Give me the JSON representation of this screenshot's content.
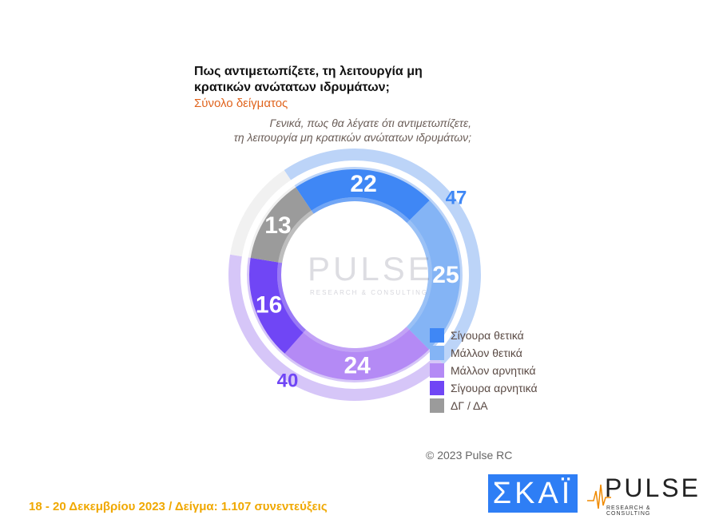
{
  "chart_data": {
    "type": "pie",
    "title": "Πως αντιμετωπίζετε, τη λειτουργία μη κρατικών ανώτατων ιδρυμάτων;",
    "subtitle": "Σύνολο δείγματος",
    "question": [
      "Γενικά, πως θα λέγατε ότι αντιμετωπίζετε,",
      "τη λειτουργία μη κρατικών ανώτατων ιδρυμάτων;"
    ],
    "categories": [
      "Σίγουρα θετικά",
      "Μάλλον θετικά",
      "Μάλλον αρνητικά",
      "Σίγουρα αρνητικά",
      "ΔΓ / ΔΑ"
    ],
    "values": [
      22,
      25,
      24,
      16,
      13
    ],
    "colors": [
      "#3f87f5",
      "#84b4f5",
      "#b48af5",
      "#7046f5",
      "#9b9b9b"
    ],
    "aggregates": [
      {
        "value": 47,
        "color": "#bcd4f8",
        "label_color": "#3f87f5"
      },
      {
        "value": 40,
        "color": "#d6c6f8",
        "label_color": "#7046f5"
      },
      {
        "value": 13,
        "color": "#f1f1f1",
        "label_color": ""
      }
    ],
    "legend_position": "bottom-right"
  },
  "copyright": "© 2023 Pulse RC",
  "footer": "18 - 20  Δεκεμβρίου  2023  /  Δείγμα:  1.107 συνεντεύξεις",
  "logos": {
    "skai": "ΣΚΑΪ",
    "pulse": "PULSE",
    "pulse_sub": "RESEARCH & CONSULTING"
  }
}
